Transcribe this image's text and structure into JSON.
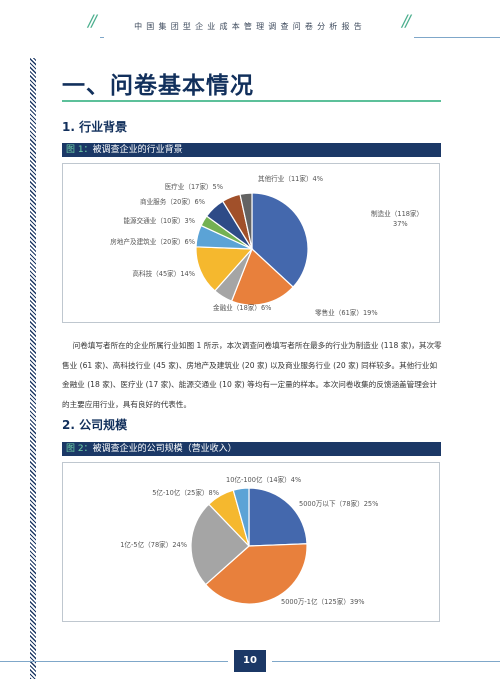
{
  "header": {
    "title": "中国集团型企业成本管理调查问卷分析报告"
  },
  "section": {
    "title": "一、问卷基本情况"
  },
  "sub1": {
    "title": "1. 行业背景"
  },
  "sub2": {
    "title": "2. 公司规模"
  },
  "fig1": {
    "no": "图 1：",
    "caption": "被调查企业的行业背景"
  },
  "fig2": {
    "no": "图 2：",
    "caption": "被调查企业的公司规模（营业收入）"
  },
  "paragraph": "问卷填写者所在的企业所属行业如图 1 所示，本次调查问卷填写者所在最多的行业为制造业 (118 家)，其次零售业 (61 家)、高科技行业 (45 家)、房地产及建筑业 (20 家) 以及商业服务行业 (20 家) 同样较多。其他行业如金融业 (18 家)、医疗业 (17 家)、能源交通业 (10 家) 等均有一定量的样本。本次问卷收集的反馈涵盖管理会计的主要应用行业，具有良好的代表性。",
  "page_number": "10",
  "colors": {
    "navy": "#1b3866",
    "accent": "#5cc09a"
  },
  "chart_data": [
    {
      "type": "pie",
      "start": "top, clockwise",
      "labels": [
        "制造业",
        "零售业",
        "金融业",
        "高科技",
        "房地产及建筑业",
        "能源交通业",
        "商业服务",
        "医疗业",
        "其他行业"
      ],
      "counts": [
        118,
        61,
        18,
        45,
        20,
        10,
        20,
        17,
        11
      ],
      "display": [
        [
          "制造业（118家）",
          "37%"
        ],
        [
          "零售业（61家）19%"
        ],
        [
          "金融业（18家）6%"
        ],
        [
          "高科技（45家）14%"
        ],
        [
          "房地产及建筑业（20家）6%"
        ],
        [
          "能源交通业（10家）3%"
        ],
        [
          "商业服务（20家）6%"
        ],
        [
          "医疗业（17家）5%"
        ],
        [
          "其他行业（11家）4%"
        ]
      ],
      "colors": [
        "#4468ad",
        "#e8803c",
        "#a5a5a5",
        "#f5b82e",
        "#5ba3d6",
        "#74b153",
        "#2e4b87",
        "#a1502a",
        "#636363"
      ]
    },
    {
      "type": "pie",
      "start": "top, clockwise",
      "labels": [
        "5000万以下",
        "5000万-1亿",
        "1亿-5亿",
        "5亿-10亿",
        "10亿-100亿"
      ],
      "counts": [
        78,
        125,
        78,
        25,
        14
      ],
      "display": [
        [
          "5000万以下（78家）25%"
        ],
        [
          "5000万-1亿（125家）39%"
        ],
        [
          "1亿-5亿（78家）24%"
        ],
        [
          "5亿-10亿（25家）8%"
        ],
        [
          "10亿-100亿（14家）4%"
        ]
      ],
      "colors": [
        "#4468ad",
        "#e8803c",
        "#a5a5a5",
        "#f5b82e",
        "#5ba3d6"
      ]
    }
  ]
}
